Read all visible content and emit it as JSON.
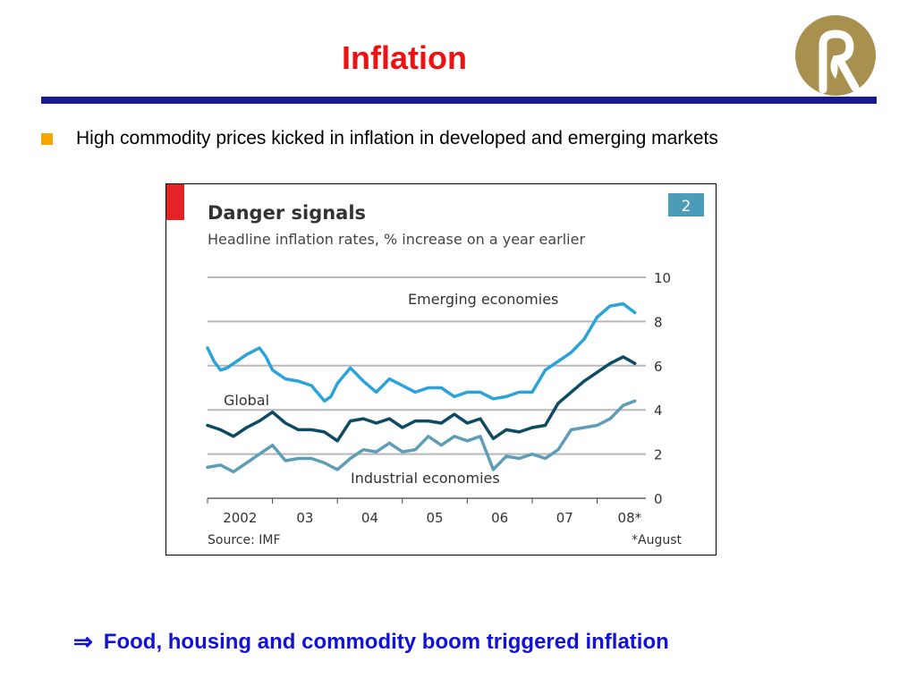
{
  "slide": {
    "title": "Inflation",
    "bullet": "High commodity prices kicked in inflation in developed and emerging markets",
    "conclusion_arrow": "⇒",
    "conclusion": "Food, housing and commodity boom triggered inflation"
  },
  "colors": {
    "title": "#ee1111",
    "rule": "#1a1a8c",
    "bullet": "#f7a600",
    "conclusion": "#1111dd",
    "logo": "#a8904f",
    "emerging": "#29a3da",
    "global": "#0d4a63",
    "industrial": "#5e9db7",
    "badge": "#4c9cb9",
    "accent_bar": "#e42325"
  },
  "chart_data": {
    "type": "line",
    "title": "Danger signals",
    "subtitle": "Headline inflation rates, % increase on a year earlier",
    "badge": "2",
    "x_tick_labels": [
      "2002",
      "03",
      "04",
      "05",
      "06",
      "07",
      "08*"
    ],
    "ylim": [
      0,
      10
    ],
    "y_ticks": [
      0,
      2,
      4,
      6,
      8,
      10
    ],
    "y_axis_side": "right",
    "grid": true,
    "series": [
      {
        "name": "Emerging economies",
        "color": "#29a3da",
        "x": [
          2002.0,
          2002.1,
          2002.2,
          2002.3,
          2002.5,
          2002.6,
          2002.8,
          2002.9,
          2003.0,
          2003.2,
          2003.4,
          2003.6,
          2003.8,
          2003.9,
          2004.0,
          2004.2,
          2004.4,
          2004.6,
          2004.8,
          2005.0,
          2005.2,
          2005.4,
          2005.6,
          2005.8,
          2006.0,
          2006.2,
          2006.4,
          2006.6,
          2006.8,
          2007.0,
          2007.2,
          2007.4,
          2007.6,
          2007.8,
          2008.0,
          2008.2,
          2008.4,
          2008.58
        ],
        "values": [
          6.8,
          6.2,
          5.8,
          5.9,
          6.3,
          6.5,
          6.8,
          6.4,
          5.8,
          5.4,
          5.3,
          5.1,
          4.4,
          4.6,
          5.2,
          5.9,
          5.3,
          4.8,
          5.4,
          5.1,
          4.8,
          5.0,
          5.0,
          4.6,
          4.8,
          4.8,
          4.5,
          4.6,
          4.8,
          4.8,
          5.8,
          6.2,
          6.6,
          7.2,
          8.2,
          8.7,
          8.8,
          8.4
        ]
      },
      {
        "name": "Global",
        "color": "#0d4a63",
        "x": [
          2002.0,
          2002.2,
          2002.4,
          2002.6,
          2002.8,
          2003.0,
          2003.2,
          2003.4,
          2003.6,
          2003.8,
          2004.0,
          2004.2,
          2004.4,
          2004.6,
          2004.8,
          2005.0,
          2005.2,
          2005.4,
          2005.6,
          2005.8,
          2006.0,
          2006.2,
          2006.4,
          2006.6,
          2006.8,
          2007.0,
          2007.2,
          2007.4,
          2007.6,
          2007.8,
          2008.0,
          2008.2,
          2008.4,
          2008.58
        ],
        "values": [
          3.3,
          3.1,
          2.8,
          3.2,
          3.5,
          3.9,
          3.4,
          3.1,
          3.1,
          3.0,
          2.6,
          3.5,
          3.6,
          3.4,
          3.6,
          3.2,
          3.5,
          3.5,
          3.4,
          3.8,
          3.4,
          3.6,
          2.7,
          3.1,
          3.0,
          3.2,
          3.3,
          4.3,
          4.8,
          5.3,
          5.7,
          6.1,
          6.4,
          6.1
        ]
      },
      {
        "name": "Industrial economies",
        "color": "#5e9db7",
        "x": [
          2002.0,
          2002.2,
          2002.4,
          2002.6,
          2002.8,
          2003.0,
          2003.2,
          2003.4,
          2003.6,
          2003.8,
          2004.0,
          2004.2,
          2004.4,
          2004.6,
          2004.8,
          2005.0,
          2005.2,
          2005.4,
          2005.6,
          2005.8,
          2006.0,
          2006.2,
          2006.4,
          2006.6,
          2006.8,
          2007.0,
          2007.2,
          2007.4,
          2007.6,
          2007.8,
          2008.0,
          2008.2,
          2008.4,
          2008.58
        ],
        "values": [
          1.4,
          1.5,
          1.2,
          1.6,
          2.0,
          2.4,
          1.7,
          1.8,
          1.8,
          1.6,
          1.3,
          1.8,
          2.2,
          2.1,
          2.5,
          2.1,
          2.2,
          2.8,
          2.4,
          2.8,
          2.6,
          2.8,
          1.3,
          1.9,
          1.8,
          2.0,
          1.8,
          2.2,
          3.1,
          3.2,
          3.3,
          3.6,
          4.2,
          4.4
        ]
      }
    ],
    "annotations": [
      "Emerging economies",
      "Global",
      "Industrial economies"
    ],
    "source": "Source: IMF",
    "footnote": "*August"
  }
}
